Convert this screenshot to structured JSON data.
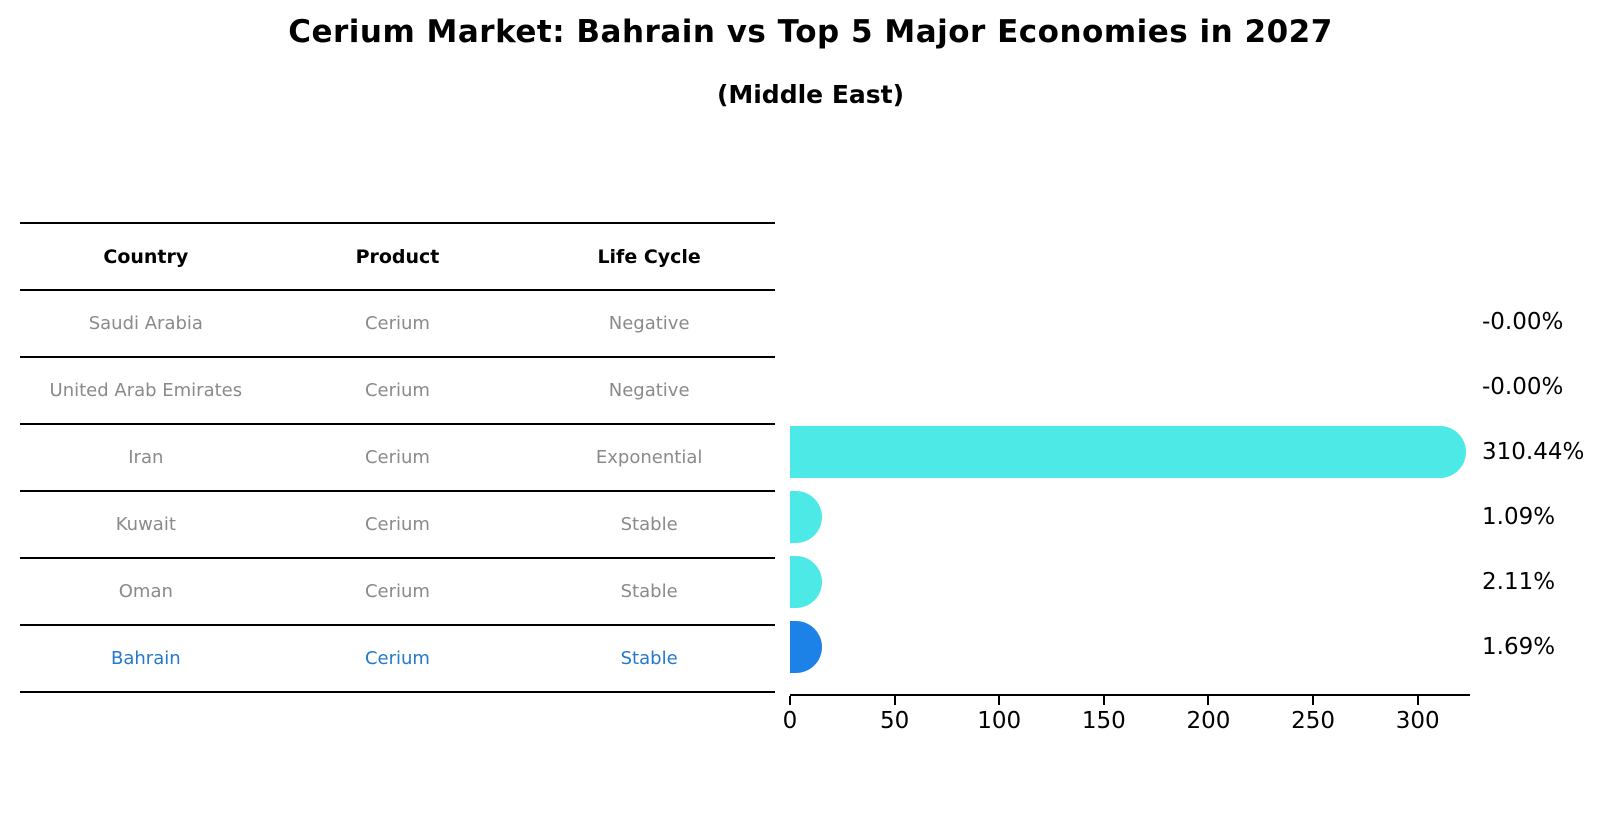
{
  "title": "Cerium Market: Bahrain vs Top 5 Major Economies in 2027",
  "subtitle": "(Middle East)",
  "table": {
    "headers": [
      "Country",
      "Product",
      "Life Cycle"
    ],
    "rows": [
      {
        "country": "Saudi Arabia",
        "product": "Cerium",
        "life_cycle": "Negative"
      },
      {
        "country": "United Arab Emirates",
        "product": "Cerium",
        "life_cycle": "Negative"
      },
      {
        "country": "Iran",
        "product": "Cerium",
        "life_cycle": "Exponential"
      },
      {
        "country": "Kuwait",
        "product": "Cerium",
        "life_cycle": "Stable"
      },
      {
        "country": "Oman",
        "product": "Cerium",
        "life_cycle": "Stable"
      },
      {
        "country": "Bahrain",
        "product": "Cerium",
        "life_cycle": "Stable"
      }
    ]
  },
  "chart_data": {
    "type": "bar",
    "orientation": "horizontal",
    "title": "Cerium Market: Bahrain vs Top 5 Major Economies in 2027",
    "subtitle": "(Middle East)",
    "categories": [
      "Saudi Arabia",
      "United Arab Emirates",
      "Iran",
      "Kuwait",
      "Oman",
      "Bahrain"
    ],
    "values": [
      -0.0,
      -0.0,
      310.44,
      1.09,
      2.11,
      1.69
    ],
    "value_labels": [
      "-0.00%",
      "-0.00%",
      "310.44%",
      "1.09%",
      "2.11%",
      "1.69%"
    ],
    "xticks": [
      0,
      50,
      100,
      150,
      200,
      250,
      300
    ],
    "xlim": [
      0,
      325
    ],
    "xlabel": "",
    "ylabel": "",
    "grid": false,
    "legend": false,
    "bar_color": "#4DE9E6",
    "highlight_color": "#1C82E8",
    "highlight_index": 5
  },
  "colors": {
    "bar_cyan": "#4DE9E6",
    "bar_blue": "#1C82E8",
    "highlight_text": "#2379CC",
    "muted_text": "#8A8A8A",
    "axis": "#000000"
  }
}
